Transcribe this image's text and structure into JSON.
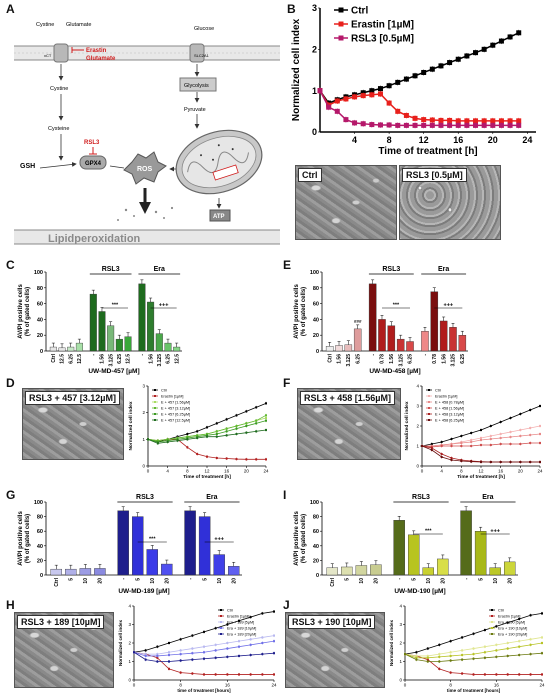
{
  "panels": {
    "A": {
      "letter": "A",
      "labels": {
        "cystine_top": "Cystine",
        "glutamate_top": "Glutamate",
        "xct": "xCT",
        "erastin": "Erastin",
        "glutamate_red": "Glutamate",
        "glucose": "Glucose",
        "slc2a1": "SLC2A1",
        "cystine": "Cystine",
        "cysteine": "Cysteine",
        "rsl3": "RSL3",
        "gpx4": "GPX4",
        "gsh": "GSH",
        "ros": "ROS",
        "glycolysis": "Glycolysis",
        "pyruvate": "Pyruvate",
        "atp": "ATP",
        "lipidperox": "Lipidperoxidation"
      }
    },
    "B": {
      "letter": "B",
      "micro_ctrl": "Ctrl",
      "micro_rsl3": "RSL3 [0.5µM]"
    },
    "C": {
      "letter": "C"
    },
    "D": {
      "letter": "D",
      "micro": "RSL3 + 457 [3.12µM]"
    },
    "E": {
      "letter": "E"
    },
    "F": {
      "letter": "F",
      "micro": "RSL3 + 458 [1.56µM]"
    },
    "G": {
      "letter": "G"
    },
    "H": {
      "letter": "H",
      "micro": "RSL3 + 189 [10µM]"
    },
    "I": {
      "letter": "I"
    },
    "J": {
      "letter": "J",
      "micro": "RSL3 + 190 [10µM]"
    }
  },
  "chart_data": [
    {
      "id": "B",
      "type": "line",
      "ylabel": "Normalized cell index",
      "xlabel": "Time of treatment [h]",
      "xlim": [
        0,
        25
      ],
      "ylim": [
        0,
        3
      ],
      "xticks": [
        4,
        8,
        12,
        16,
        20,
        24
      ],
      "yticks": [
        0,
        1,
        2,
        3
      ],
      "legend": "top-left",
      "series": [
        {
          "name": "Ctrl",
          "color": "#000000",
          "marker": "square",
          "x": [
            0,
            1,
            2,
            3,
            4,
            5,
            6,
            7,
            8,
            9,
            10,
            11,
            12,
            13,
            14,
            15,
            16,
            17,
            18,
            19,
            20,
            21,
            22,
            23
          ],
          "y": [
            1.0,
            0.7,
            0.78,
            0.85,
            0.9,
            0.95,
            1.0,
            1.05,
            1.12,
            1.2,
            1.28,
            1.36,
            1.44,
            1.52,
            1.6,
            1.68,
            1.76,
            1.84,
            1.92,
            2.0,
            2.1,
            2.2,
            2.3,
            2.4
          ]
        },
        {
          "name": "Erastin [1µM]",
          "color": "#e8201c",
          "marker": "square",
          "x": [
            0,
            1,
            2,
            3,
            4,
            5,
            6,
            7,
            8,
            9,
            10,
            11,
            12,
            13,
            14,
            15,
            16,
            17,
            18,
            19,
            20,
            21,
            22,
            23
          ],
          "y": [
            1.0,
            0.65,
            0.75,
            0.8,
            0.85,
            0.88,
            0.9,
            0.92,
            0.7,
            0.5,
            0.4,
            0.33,
            0.3,
            0.29,
            0.28,
            0.28,
            0.27,
            0.27,
            0.27,
            0.27,
            0.27,
            0.27,
            0.27,
            0.27
          ]
        },
        {
          "name": "RSL3 [0.5µM]",
          "color": "#b5186a",
          "marker": "square",
          "x": [
            0,
            1,
            2,
            3,
            4,
            5,
            6,
            7,
            8,
            9,
            10,
            11,
            12,
            13,
            14,
            15,
            16,
            17,
            18,
            19,
            20,
            21,
            22,
            23
          ],
          "y": [
            1.0,
            0.6,
            0.5,
            0.3,
            0.22,
            0.2,
            0.18,
            0.17,
            0.17,
            0.16,
            0.16,
            0.16,
            0.16,
            0.16,
            0.16,
            0.16,
            0.16,
            0.16,
            0.16,
            0.16,
            0.16,
            0.16,
            0.16,
            0.16
          ]
        }
      ]
    },
    {
      "id": "C",
      "type": "bar",
      "ylabel": "AV/PI positive cells\n(% of gated cells)",
      "xlabel": "UW-MD-457 [µM]",
      "ylim": [
        0,
        100
      ],
      "yticks": [
        0,
        20,
        40,
        60,
        80,
        100
      ],
      "groups": [
        "RSL3",
        "Era"
      ],
      "categories": [
        "Ctrl",
        "12.5",
        "6.25",
        "12.5",
        "-",
        "1.56",
        "3.125",
        "6.25",
        "12.5",
        "-",
        "1.56",
        "3.125",
        "6.25",
        "12.5"
      ],
      "values": [
        5,
        4,
        5,
        10,
        72,
        50,
        32,
        15,
        18,
        85,
        62,
        22,
        10,
        5
      ],
      "colors": [
        "#e6e6e6",
        "#e6e6e6",
        "#c8e8c8",
        "#a8e0a8",
        "#1e6b1e",
        "#1e6b1e",
        "#78b878",
        "#2b8b2b",
        "#3aa83a",
        "#1e6b1e",
        "#2e7d2e",
        "#4aa84a",
        "#68c468",
        "#86d886"
      ],
      "annotations": [
        "***",
        "+++"
      ]
    },
    {
      "id": "E",
      "type": "bar",
      "ylabel": "AV/PI positive cells\n(% of gated cells)",
      "xlabel": "UW-MD-458 [µM]",
      "ylim": [
        0,
        100
      ],
      "yticks": [
        0,
        20,
        40,
        60,
        80,
        100
      ],
      "groups": [
        "RSL3",
        "Era"
      ],
      "categories": [
        "Ctrl",
        "1.56",
        "3.125",
        "6.25",
        "-",
        "0.78",
        "1.56",
        "3.125",
        "6.25",
        "-",
        "0.78",
        "1.56",
        "3.125",
        "6.25"
      ],
      "values": [
        6,
        7,
        8,
        28,
        85,
        40,
        32,
        15,
        12,
        25,
        75,
        38,
        30,
        20
      ],
      "colors": [
        "#eeeeee",
        "#f2dcdc",
        "#e8bcbc",
        "#de9c9c",
        "#7a0e0e",
        "#b01c1c",
        "#b01c1c",
        "#c83232",
        "#d84848",
        "#ee8888",
        "#7a0e0e",
        "#b01c1c",
        "#c83232",
        "#d84848"
      ],
      "annotations": [
        "###",
        "***",
        "+++"
      ]
    },
    {
      "id": "G",
      "type": "bar",
      "ylabel": "AV/PI positive cells\n(% of gated cells)",
      "xlabel": "UW-MD-189 [µM]",
      "ylim": [
        0,
        100
      ],
      "yticks": [
        0,
        20,
        40,
        60,
        80,
        100
      ],
      "groups": [
        "RSL3",
        "Era"
      ],
      "categories": [
        "Ctrl",
        "5",
        "10",
        "20",
        "-",
        "5",
        "10",
        "20",
        "-",
        "5",
        "10",
        "20"
      ],
      "values": [
        8,
        8,
        9,
        9,
        88,
        80,
        35,
        15,
        88,
        80,
        28,
        12
      ],
      "colors": [
        "#c8c8ee",
        "#b0b0e8",
        "#9c9ce4",
        "#8a8ae0",
        "#1e1e8c",
        "#3030d8",
        "#3a3ae8",
        "#5050f0",
        "#1e1e8c",
        "#3030d8",
        "#4040e8",
        "#6060f0"
      ],
      "annotations": [
        "***",
        "+++"
      ]
    },
    {
      "id": "I",
      "type": "bar",
      "ylabel": "AV/PI positive cells\n(% of gated cells)",
      "xlabel": "UW-MD-190 [µM]",
      "ylim": [
        0,
        100
      ],
      "yticks": [
        0,
        20,
        40,
        60,
        80,
        100
      ],
      "groups": [
        "RSL3",
        "Era"
      ],
      "categories": [
        "Ctrl",
        "5",
        "10",
        "20",
        "-",
        "5",
        "10",
        "20",
        "-",
        "5",
        "10",
        "20"
      ],
      "values": [
        10,
        11,
        13,
        14,
        75,
        55,
        10,
        22,
        88,
        60,
        10,
        18
      ],
      "colors": [
        "#e4e6c8",
        "#dde0b0",
        "#d2d6a0",
        "#c8cc90",
        "#556b1a",
        "#b8c420",
        "#c8d030",
        "#d8de48",
        "#556b1a",
        "#a8b818",
        "#bcc828",
        "#ccd63a"
      ],
      "annotations": [
        "***",
        "+++"
      ]
    },
    {
      "id": "D",
      "type": "line",
      "xlabel": "Time of treatment [h]",
      "ylabel": "Normalized cell index",
      "xlim": [
        0,
        24
      ],
      "ylim": [
        0,
        3
      ],
      "xticks": [
        0,
        4,
        8,
        12,
        16,
        20,
        24
      ],
      "yticks": [
        0,
        1,
        2,
        3
      ],
      "legend": "top-left",
      "series": [
        {
          "name": "Ctrl",
          "color": "#000000",
          "y": [
            1.0,
            0.9,
            1.0,
            1.1,
            1.2,
            1.3,
            1.45,
            1.6,
            1.75,
            1.9,
            2.05,
            2.2,
            2.35
          ]
        },
        {
          "name": "Erastin [1µM]",
          "color": "#b22020",
          "y": [
            1.0,
            0.95,
            1.0,
            1.0,
            0.7,
            0.45,
            0.35,
            0.3,
            0.28,
            0.26,
            0.25,
            0.25,
            0.25
          ]
        },
        {
          "name": "E + 457 [1.56µM]",
          "color": "#a8dc60",
          "y": [
            1.0,
            0.95,
            1.0,
            1.05,
            1.1,
            1.15,
            1.2,
            1.3,
            1.4,
            1.5,
            1.6,
            1.7,
            1.8
          ]
        },
        {
          "name": "E + 457 [3.12µM]",
          "color": "#60b830",
          "y": [
            1.0,
            0.95,
            1.0,
            1.05,
            1.1,
            1.15,
            1.2,
            1.3,
            1.4,
            1.5,
            1.6,
            1.7,
            1.9
          ]
        },
        {
          "name": "E + 457 [6.25µM]",
          "color": "#3a9a20",
          "y": [
            1.0,
            0.9,
            0.95,
            1.0,
            1.05,
            1.1,
            1.15,
            1.2,
            1.3,
            1.4,
            1.5,
            1.6,
            1.7
          ]
        },
        {
          "name": "E + 457 [12.5µM]",
          "color": "#1e6b1e",
          "y": [
            1.0,
            0.85,
            0.9,
            0.95,
            1.0,
            1.05,
            1.1,
            1.1,
            1.15,
            1.2,
            1.25,
            1.3,
            1.35
          ]
        }
      ]
    },
    {
      "id": "F",
      "type": "line",
      "xlabel": "Time of treatment [h]",
      "ylabel": "Normalized cell index",
      "xlim": [
        0,
        24
      ],
      "ylim": [
        0,
        4
      ],
      "xticks": [
        0,
        4,
        8,
        12,
        16,
        20,
        24
      ],
      "yticks": [
        0,
        1,
        2,
        3,
        4
      ],
      "legend": "top-left",
      "series": [
        {
          "name": "Ctrl",
          "color": "#000000",
          "y": [
            1.0,
            1.1,
            1.2,
            1.35,
            1.5,
            1.65,
            1.8,
            2.0,
            2.2,
            2.4,
            2.6,
            2.8,
            3.0
          ]
        },
        {
          "name": "Erastin [1µM]",
          "color": "#f4b0b0",
          "y": [
            1.0,
            1.0,
            1.05,
            1.1,
            1.2,
            1.3,
            1.4,
            1.5,
            1.6,
            1.7,
            1.8,
            1.9,
            2.0
          ]
        },
        {
          "name": "E + 458 [0.78µM]",
          "color": "#e88a8a",
          "y": [
            1.0,
            1.0,
            1.05,
            1.1,
            1.15,
            1.2,
            1.3,
            1.35,
            1.4,
            1.45,
            1.5,
            1.55,
            1.6
          ]
        },
        {
          "name": "E + 458 [1.56µM]",
          "color": "#d05050",
          "y": [
            1.0,
            0.95,
            1.0,
            1.0,
            1.0,
            1.0,
            1.05,
            1.05,
            1.1,
            1.1,
            1.1,
            1.15,
            1.15
          ]
        },
        {
          "name": "E + 458 [3.12µM]",
          "color": "#a82020",
          "y": [
            1.0,
            0.9,
            0.6,
            0.4,
            0.3,
            0.25,
            0.22,
            0.2,
            0.2,
            0.2,
            0.2,
            0.2,
            0.2
          ]
        },
        {
          "name": "E + 458 [6.25µM]",
          "color": "#6a0e0e",
          "y": [
            1.0,
            0.8,
            0.45,
            0.3,
            0.25,
            0.22,
            0.2,
            0.2,
            0.2,
            0.2,
            0.2,
            0.2,
            0.2
          ]
        }
      ]
    },
    {
      "id": "H",
      "type": "line",
      "xlabel": "time of treatment [hours]",
      "ylabel": "Normalized cell index",
      "xlim": [
        0,
        24
      ],
      "ylim": [
        0,
        4
      ],
      "xticks": [
        0,
        8,
        16,
        24
      ],
      "yticks": [
        0,
        1,
        2,
        3,
        4
      ],
      "legend": "top-right",
      "series": [
        {
          "name": "Ctrl",
          "color": "#000000",
          "y": [
            1.5,
            1.6,
            1.8,
            2.0,
            2.2,
            2.4,
            2.6,
            2.8,
            3.0,
            3.2,
            3.4,
            3.6,
            3.7
          ]
        },
        {
          "name": "Erastin [1µM]",
          "color": "#b22020",
          "y": [
            1.5,
            1.4,
            1.2,
            0.6,
            0.4,
            0.35,
            0.3,
            0.3,
            0.3,
            0.3,
            0.3,
            0.3,
            0.3
          ]
        },
        {
          "name": "Era + 189 [5µM]",
          "color": "#b8b8f0",
          "y": [
            1.5,
            1.4,
            1.4,
            1.5,
            1.6,
            1.7,
            1.8,
            1.9,
            2.0,
            2.1,
            2.2,
            2.3,
            2.4
          ]
        },
        {
          "name": "Era + 189 [10µM]",
          "color": "#7070e8",
          "y": [
            1.5,
            1.3,
            1.3,
            1.35,
            1.4,
            1.45,
            1.5,
            1.6,
            1.7,
            1.8,
            1.9,
            2.0,
            2.1
          ]
        },
        {
          "name": "Era + 189 [20µM]",
          "color": "#1e1e8c",
          "y": [
            1.5,
            1.1,
            1.0,
            1.0,
            1.05,
            1.1,
            1.15,
            1.2,
            1.25,
            1.3,
            1.35,
            1.4,
            1.45
          ]
        }
      ]
    },
    {
      "id": "J",
      "type": "line",
      "xlabel": "time of treatment [hours]",
      "ylabel": "Normalized cell index",
      "xlim": [
        0,
        24
      ],
      "ylim": [
        0,
        4
      ],
      "xticks": [
        0,
        8,
        16,
        24
      ],
      "yticks": [
        0,
        1,
        2,
        3,
        4
      ],
      "legend": "top-right",
      "series": [
        {
          "name": "Ctrl",
          "color": "#000000",
          "y": [
            1.4,
            1.5,
            1.7,
            1.9,
            2.1,
            2.3,
            2.5,
            2.7,
            2.9,
            3.1,
            3.3,
            3.5,
            3.6
          ]
        },
        {
          "name": "Erastin [1µM]",
          "color": "#b22020",
          "y": [
            1.4,
            1.3,
            1.1,
            0.6,
            0.4,
            0.35,
            0.3,
            0.3,
            0.3,
            0.3,
            0.3,
            0.3,
            0.3
          ]
        },
        {
          "name": "Era + 190 [5µM]",
          "color": "#e0e690",
          "y": [
            1.4,
            1.3,
            1.3,
            1.4,
            1.5,
            1.6,
            1.7,
            1.8,
            1.9,
            2.0,
            2.1,
            2.2,
            2.3
          ]
        },
        {
          "name": "Era + 190 [10µM]",
          "color": "#b8c428",
          "y": [
            1.4,
            1.2,
            1.2,
            1.25,
            1.3,
            1.35,
            1.4,
            1.5,
            1.6,
            1.7,
            1.8,
            1.9,
            2.0
          ]
        },
        {
          "name": "Era + 190 [20µM]",
          "color": "#6b7a10",
          "y": [
            1.4,
            1.1,
            1.0,
            1.0,
            1.05,
            1.1,
            1.15,
            1.2,
            1.25,
            1.3,
            1.35,
            1.4,
            1.45
          ]
        }
      ]
    }
  ]
}
